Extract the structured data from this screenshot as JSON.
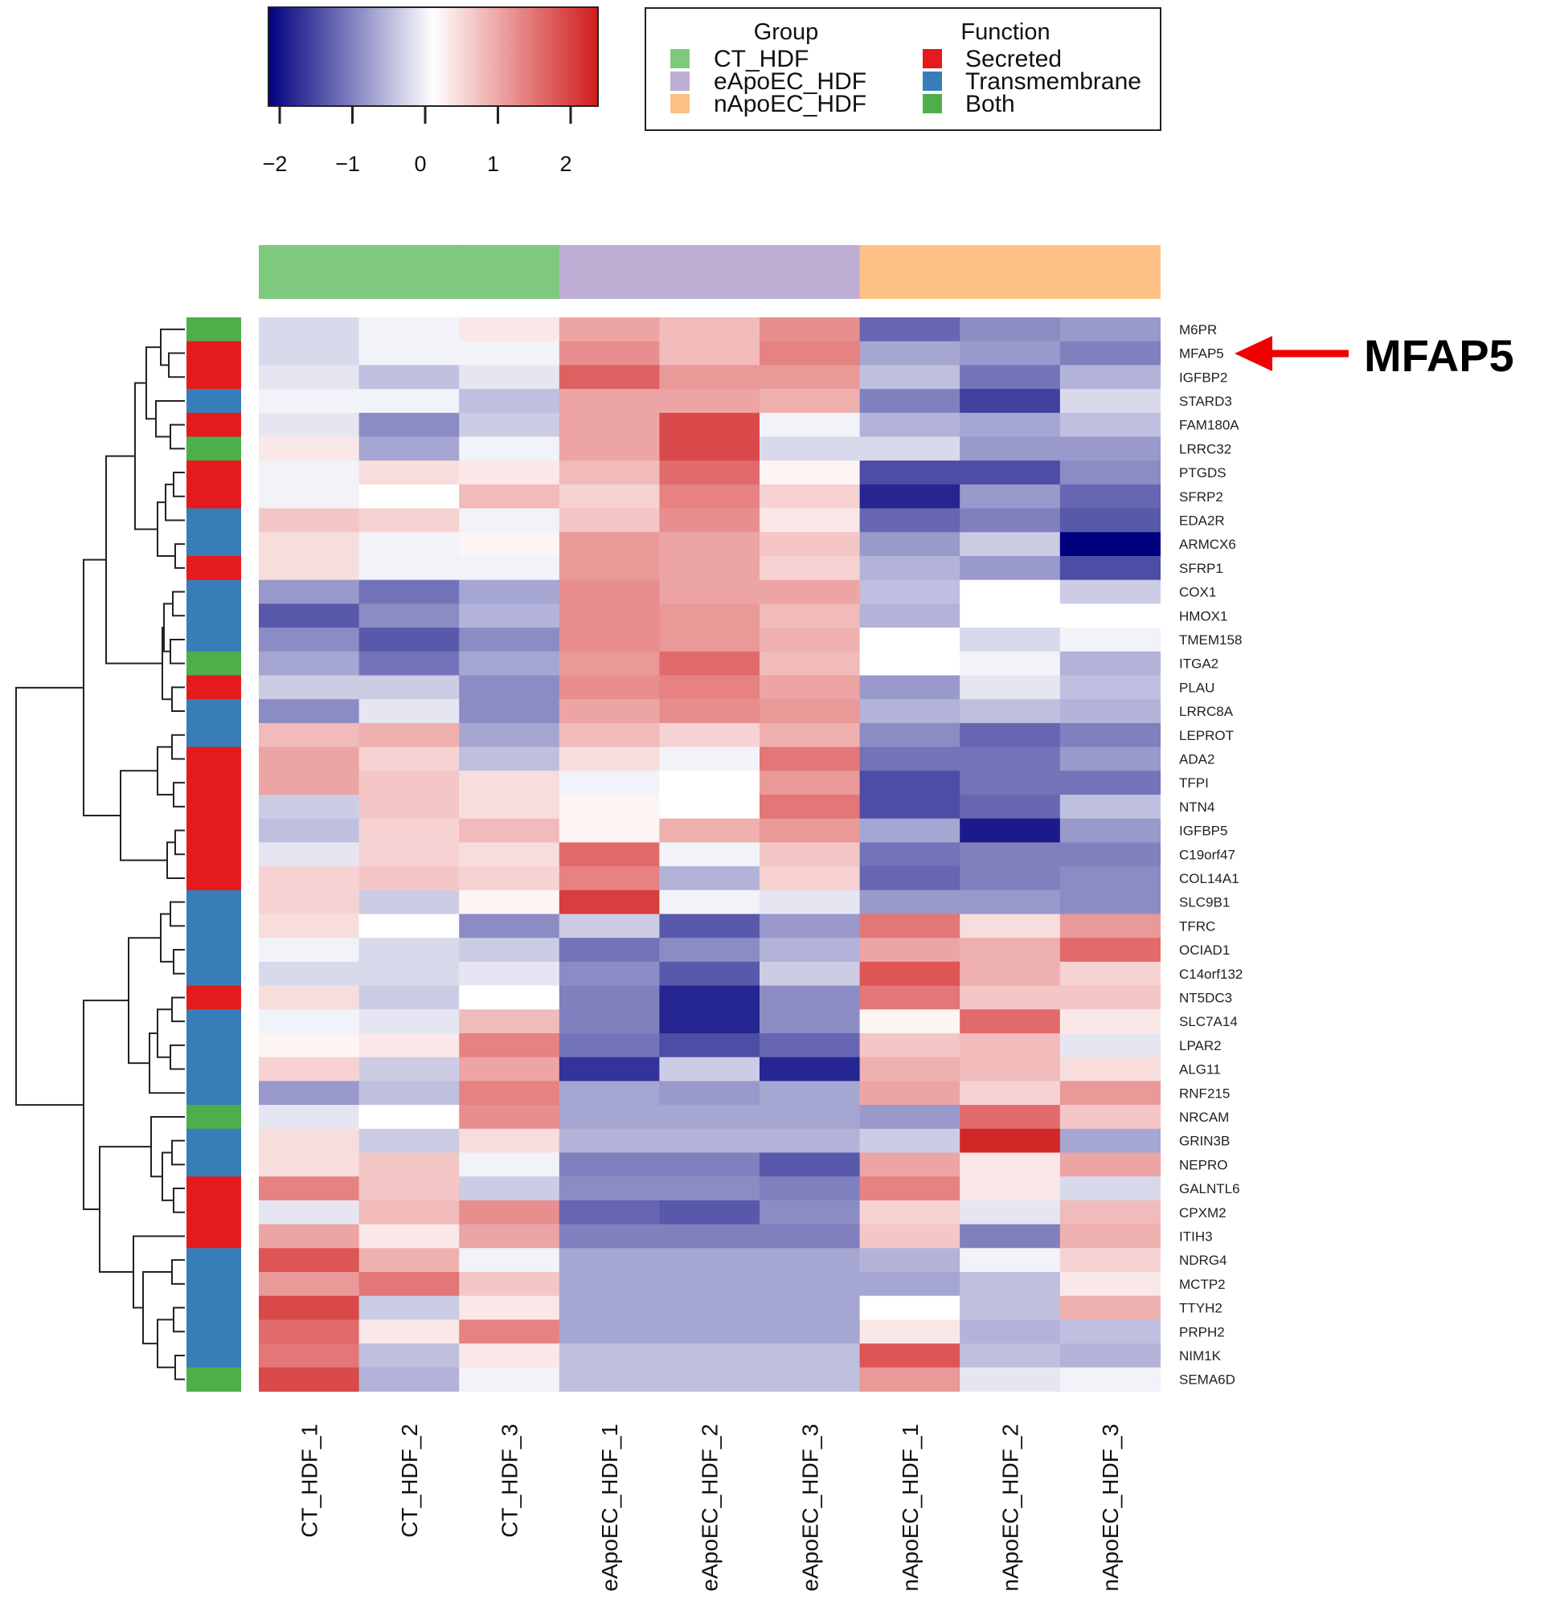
{
  "chart_data": {
    "type": "heatmap",
    "colormap": {
      "low": "#00007f",
      "mid": "#ffffff",
      "high": "#d11c1c"
    },
    "color_scale": {
      "min": -2,
      "max": 2,
      "ticks": [
        "−2",
        "−1",
        "0",
        "1",
        "2"
      ]
    },
    "columns": [
      "CT_HDF_1",
      "CT_HDF_2",
      "CT_HDF_3",
      "eApoEC_HDF_1",
      "eApoEC_HDF_2",
      "eApoEC_HDF_3",
      "nApoEC_HDF_1",
      "nApoEC_HDF_2",
      "nApoEC_HDF_3"
    ],
    "column_groups": [
      "CT_HDF",
      "CT_HDF",
      "CT_HDF",
      "eApoEC_HDF",
      "eApoEC_HDF",
      "eApoEC_HDF",
      "nApoEC_HDF",
      "nApoEC_HDF",
      "nApoEC_HDF"
    ],
    "group_legend": {
      "title": "Group",
      "items": [
        {
          "label": "CT_HDF",
          "color": "#7fc97f"
        },
        {
          "label": "eApoEC_HDF",
          "color": "#beaed4"
        },
        {
          "label": "nApoEC_HDF",
          "color": "#fdc086"
        }
      ]
    },
    "function_legend": {
      "title": "Function",
      "items": [
        {
          "label": "Secreted",
          "color": "#e41a1c"
        },
        {
          "label": "Transmembrane",
          "color": "#377eb8"
        },
        {
          "label": "Both",
          "color": "#4daf4a"
        }
      ]
    },
    "rows": [
      {
        "gene": "M6PR",
        "function": "Both",
        "values": [
          -0.3,
          -0.1,
          0.2,
          0.8,
          0.6,
          1.0,
          -1.2,
          -0.9,
          -0.8
        ]
      },
      {
        "gene": "MFAP5",
        "function": "Secreted",
        "values": [
          -0.3,
          -0.1,
          -0.1,
          1.0,
          0.6,
          1.1,
          -0.7,
          -0.8,
          -1.0
        ]
      },
      {
        "gene": "IGFBP2",
        "function": "Secreted",
        "values": [
          -0.2,
          -0.5,
          -0.2,
          1.4,
          0.9,
          0.9,
          -0.5,
          -1.1,
          -0.6
        ]
      },
      {
        "gene": "STARD3",
        "function": "Transmembrane",
        "values": [
          -0.1,
          -0.1,
          -0.5,
          0.8,
          0.8,
          0.7,
          -1.0,
          -1.5,
          -0.3
        ]
      },
      {
        "gene": "FAM180A",
        "function": "Secreted",
        "values": [
          -0.2,
          -0.9,
          -0.4,
          0.8,
          1.6,
          -0.1,
          -0.6,
          -0.7,
          -0.5
        ]
      },
      {
        "gene": "LRRC32",
        "function": "Both",
        "values": [
          0.2,
          -0.7,
          -0.1,
          0.8,
          1.6,
          -0.3,
          -0.3,
          -0.8,
          -0.8
        ]
      },
      {
        "gene": "PTGDS",
        "function": "Secreted",
        "values": [
          -0.1,
          0.3,
          0.2,
          0.6,
          1.3,
          0.1,
          -1.4,
          -1.4,
          -0.9
        ]
      },
      {
        "gene": "SFRP2",
        "function": "Secreted",
        "values": [
          -0.1,
          0.0,
          0.6,
          0.4,
          1.1,
          0.4,
          -1.7,
          -0.8,
          -1.2
        ]
      },
      {
        "gene": "EDA2R",
        "function": "Transmembrane",
        "values": [
          0.5,
          0.4,
          -0.1,
          0.5,
          1.0,
          0.2,
          -1.2,
          -1.0,
          -1.3
        ]
      },
      {
        "gene": "ARMCX6",
        "function": "Transmembrane",
        "values": [
          0.3,
          -0.1,
          0.1,
          0.9,
          0.8,
          0.5,
          -0.8,
          -0.4,
          -2.2
        ]
      },
      {
        "gene": "SFRP1",
        "function": "Secreted",
        "values": [
          0.3,
          -0.1,
          -0.1,
          0.9,
          0.8,
          0.4,
          -0.6,
          -0.8,
          -1.4
        ]
      },
      {
        "gene": "COX1",
        "function": "Transmembrane",
        "values": [
          -0.8,
          -1.1,
          -0.7,
          1.0,
          0.8,
          0.8,
          -0.5,
          0.0,
          -0.4
        ]
      },
      {
        "gene": "HMOX1",
        "function": "Transmembrane",
        "values": [
          -1.3,
          -0.9,
          -0.6,
          1.0,
          0.9,
          0.6,
          -0.6,
          0.0,
          0.0
        ]
      },
      {
        "gene": "TMEM158",
        "function": "Transmembrane",
        "values": [
          -0.9,
          -1.3,
          -0.9,
          1.0,
          0.9,
          0.7,
          0.0,
          -0.3,
          -0.1
        ]
      },
      {
        "gene": "ITGA2",
        "function": "Both",
        "values": [
          -0.7,
          -1.1,
          -0.7,
          0.9,
          1.3,
          0.6,
          0.0,
          -0.1,
          -0.6
        ]
      },
      {
        "gene": "PLAU",
        "function": "Secreted",
        "values": [
          -0.4,
          -0.4,
          -0.9,
          1.0,
          1.1,
          0.8,
          -0.8,
          -0.2,
          -0.5
        ]
      },
      {
        "gene": "LRRC8A",
        "function": "Transmembrane",
        "values": [
          -0.9,
          -0.2,
          -0.9,
          0.8,
          1.0,
          0.9,
          -0.6,
          -0.5,
          -0.6
        ]
      },
      {
        "gene": "LEPROT",
        "function": "Transmembrane",
        "values": [
          0.6,
          0.7,
          -0.7,
          0.6,
          0.4,
          0.7,
          -0.9,
          -1.2,
          -1.0
        ]
      },
      {
        "gene": "ADA2",
        "function": "Secreted",
        "values": [
          0.8,
          0.4,
          -0.5,
          0.3,
          -0.1,
          1.2,
          -1.1,
          -1.1,
          -0.8
        ]
      },
      {
        "gene": "TFPI",
        "function": "Secreted",
        "values": [
          0.8,
          0.5,
          0.3,
          -0.1,
          0.0,
          0.9,
          -1.4,
          -1.1,
          -1.1
        ]
      },
      {
        "gene": "NTN4",
        "function": "Secreted",
        "values": [
          -0.4,
          0.5,
          0.3,
          0.1,
          0.0,
          1.2,
          -1.4,
          -1.2,
          -0.5
        ]
      },
      {
        "gene": "IGFBP5",
        "function": "Secreted",
        "values": [
          -0.5,
          0.4,
          0.6,
          0.1,
          0.7,
          0.9,
          -0.7,
          -1.8,
          -0.8
        ]
      },
      {
        "gene": "C19orf47",
        "function": "Secreted",
        "values": [
          -0.2,
          0.4,
          0.3,
          1.3,
          -0.1,
          0.5,
          -1.1,
          -1.0,
          -1.0
        ]
      },
      {
        "gene": "COL14A1",
        "function": "Secreted",
        "values": [
          0.4,
          0.5,
          0.4,
          1.1,
          -0.6,
          0.4,
          -1.2,
          -1.0,
          -0.9
        ]
      },
      {
        "gene": "SLC9B1",
        "function": "Transmembrane",
        "values": [
          0.4,
          -0.4,
          0.1,
          1.7,
          -0.1,
          -0.2,
          -0.8,
          -0.8,
          -0.9
        ]
      },
      {
        "gene": "TFRC",
        "function": "Transmembrane",
        "values": [
          0.3,
          0.0,
          -0.9,
          -0.4,
          -1.3,
          -0.8,
          1.2,
          0.3,
          0.9
        ]
      },
      {
        "gene": "OCIAD1",
        "function": "Transmembrane",
        "values": [
          -0.1,
          -0.3,
          -0.4,
          -1.1,
          -0.9,
          -0.6,
          0.8,
          0.7,
          1.3
        ]
      },
      {
        "gene": "C14orf132",
        "function": "Transmembrane",
        "values": [
          -0.3,
          -0.3,
          -0.2,
          -0.9,
          -1.3,
          -0.4,
          1.5,
          0.7,
          0.4
        ]
      },
      {
        "gene": "NT5DC3",
        "function": "Secreted",
        "values": [
          0.3,
          -0.4,
          0.0,
          -1.0,
          -1.7,
          -0.9,
          1.2,
          0.5,
          0.5
        ]
      },
      {
        "gene": "SLC7A14",
        "function": "Transmembrane",
        "values": [
          -0.1,
          -0.2,
          0.6,
          -1.0,
          -1.7,
          -0.9,
          0.1,
          1.3,
          0.2
        ]
      },
      {
        "gene": "LPAR2",
        "function": "Transmembrane",
        "values": [
          0.1,
          0.2,
          1.1,
          -1.1,
          -1.4,
          -1.2,
          0.5,
          0.6,
          -0.2
        ]
      },
      {
        "gene": "ALG11",
        "function": "Transmembrane",
        "values": [
          0.4,
          -0.4,
          0.8,
          -1.6,
          -0.4,
          -1.7,
          0.7,
          0.6,
          0.3
        ]
      },
      {
        "gene": "RNF215",
        "function": "Transmembrane",
        "values": [
          -0.8,
          -0.5,
          1.1,
          -0.7,
          -0.8,
          -0.7,
          0.8,
          0.4,
          0.9
        ]
      },
      {
        "gene": "NRCAM",
        "function": "Both",
        "values": [
          -0.2,
          0.0,
          1.0,
          -0.7,
          -0.7,
          -0.7,
          -0.8,
          1.3,
          0.5
        ]
      },
      {
        "gene": "GRIN3B",
        "function": "Transmembrane",
        "values": [
          0.3,
          -0.4,
          0.3,
          -0.6,
          -0.6,
          -0.6,
          -0.4,
          1.9,
          -0.7
        ]
      },
      {
        "gene": "NEPRO",
        "function": "Transmembrane",
        "values": [
          0.3,
          0.5,
          -0.1,
          -1.0,
          -1.0,
          -1.3,
          0.8,
          0.2,
          0.8
        ]
      },
      {
        "gene": "GALNTL6",
        "function": "Secreted",
        "values": [
          1.1,
          0.5,
          -0.4,
          -0.9,
          -0.9,
          -1.0,
          1.1,
          0.2,
          -0.3
        ]
      },
      {
        "gene": "CPXM2",
        "function": "Secreted",
        "values": [
          -0.2,
          0.6,
          1.0,
          -1.2,
          -1.3,
          -0.9,
          0.4,
          -0.2,
          0.6
        ]
      },
      {
        "gene": "ITIH3",
        "function": "Secreted",
        "values": [
          0.8,
          0.2,
          0.8,
          -1.0,
          -1.0,
          -1.0,
          0.5,
          -1.0,
          0.7
        ]
      },
      {
        "gene": "NDRG4",
        "function": "Transmembrane",
        "values": [
          1.5,
          0.7,
          -0.1,
          -0.7,
          -0.7,
          -0.7,
          -0.6,
          -0.1,
          0.4
        ]
      },
      {
        "gene": "MCTP2",
        "function": "Transmembrane",
        "values": [
          0.9,
          1.2,
          0.5,
          -0.7,
          -0.7,
          -0.7,
          -0.7,
          -0.5,
          0.2
        ]
      },
      {
        "gene": "TTYH2",
        "function": "Transmembrane",
        "values": [
          1.6,
          -0.4,
          0.2,
          -0.7,
          -0.7,
          -0.7,
          0.0,
          -0.5,
          0.7
        ]
      },
      {
        "gene": "PRPH2",
        "function": "Transmembrane",
        "values": [
          1.3,
          0.2,
          1.1,
          -0.7,
          -0.7,
          -0.7,
          0.2,
          -0.6,
          -0.5
        ]
      },
      {
        "gene": "NIM1K",
        "function": "Transmembrane",
        "values": [
          1.2,
          -0.5,
          0.2,
          -0.5,
          -0.5,
          -0.5,
          1.5,
          -0.5,
          -0.6
        ]
      },
      {
        "gene": "SEMA6D",
        "function": "Both",
        "values": [
          1.6,
          -0.6,
          -0.1,
          -0.5,
          -0.5,
          -0.5,
          0.9,
          -0.2,
          -0.1
        ]
      }
    ],
    "annotation": {
      "label": "MFAP5",
      "points_to": "MFAP5",
      "arrow_color": "#ee0000"
    }
  }
}
